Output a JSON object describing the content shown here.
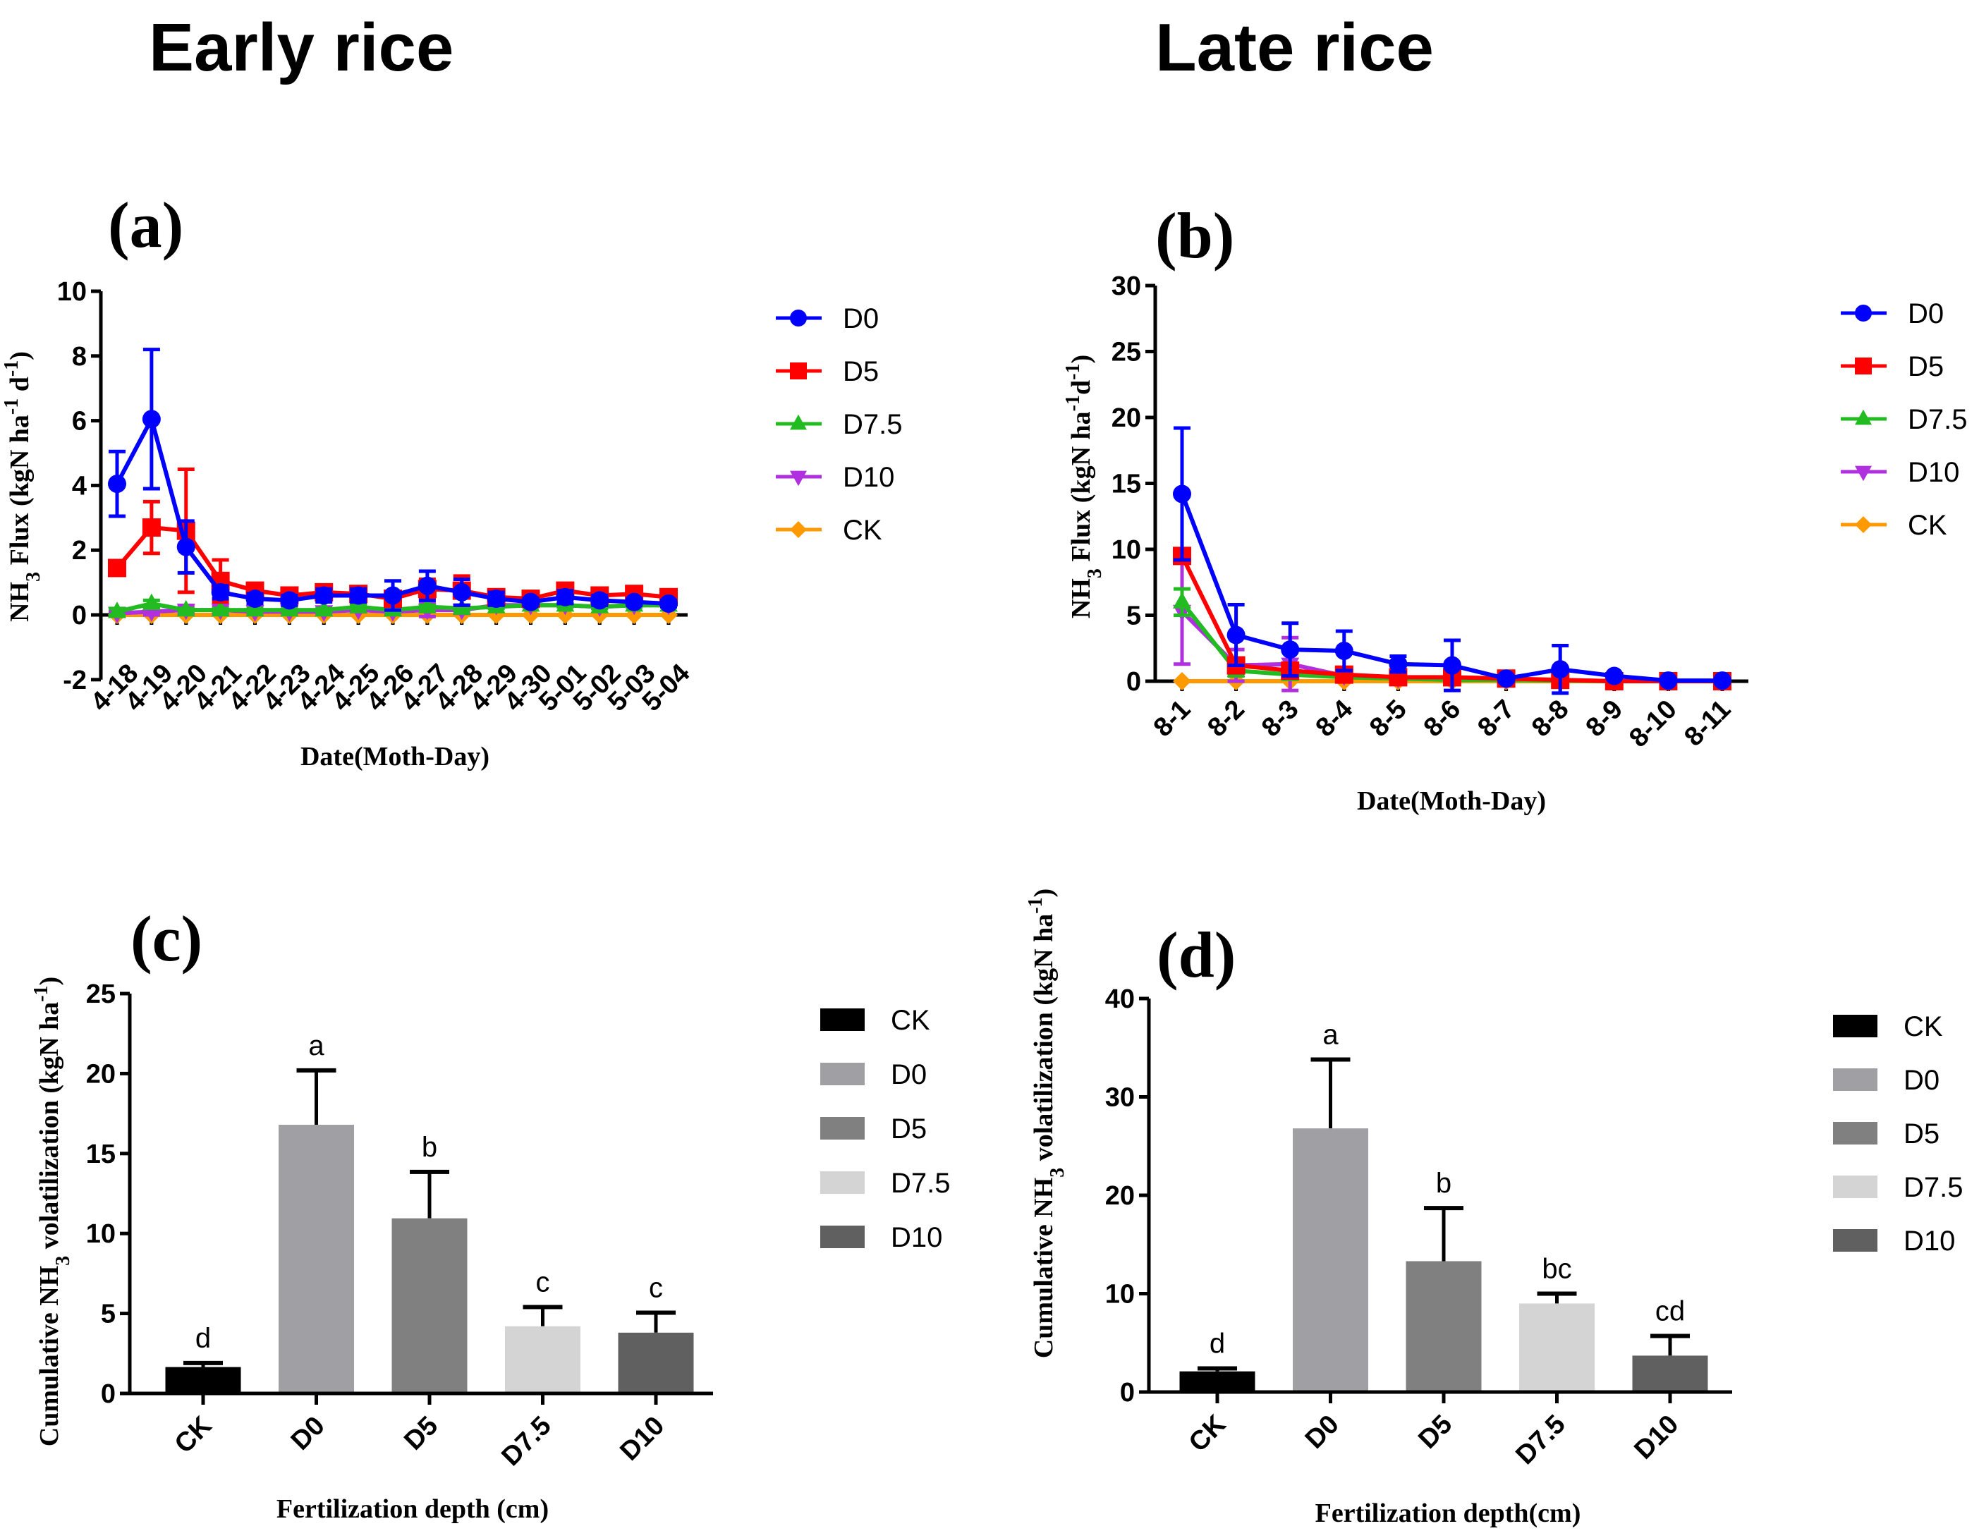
{
  "titles": {
    "early": "Early rice",
    "late": "Late rice"
  },
  "chart_data": [
    {
      "panel": "(a)",
      "type": "line",
      "ylabel_parts": [
        {
          "t": "NH"
        },
        {
          "t": "3",
          "s": "sub"
        },
        {
          "t": " Flux (kgN ha"
        },
        {
          "t": "-1",
          "s": "sup"
        },
        {
          "t": " d"
        },
        {
          "t": "-1",
          "s": "sup"
        },
        {
          "t": ")"
        }
      ],
      "xlabel": "Date(Moth-Day)",
      "ylim": [
        -2,
        10
      ],
      "yticks": [
        "-2",
        "0",
        "2",
        "4",
        "6",
        "8",
        "10"
      ],
      "ytick_values": [
        -2,
        0,
        2,
        4,
        6,
        8,
        10
      ],
      "categories": [
        "4-18",
        "4-19",
        "4-20",
        "4-21",
        "4-22",
        "4-23",
        "4-24",
        "4-25",
        "4-26",
        "4-27",
        "4-28",
        "4-29",
        "4-30",
        "5-01",
        "5-02",
        "5-03",
        "5-04"
      ],
      "legend_position": "right",
      "series": [
        {
          "name": "CK",
          "color": "#ff9900",
          "marker": "diamond",
          "values": [
            0,
            0,
            0,
            0,
            0,
            0,
            0,
            0,
            0,
            0,
            0,
            0,
            0,
            0,
            0,
            0,
            0
          ],
          "errors": [
            0,
            0,
            0,
            0,
            0,
            0,
            0,
            0,
            0,
            0,
            0,
            0,
            0,
            0,
            0,
            0,
            0
          ]
        },
        {
          "name": "D10",
          "color": "#b030e0",
          "marker": "triangle-down",
          "values": [
            0.05,
            0.1,
            0.15,
            0.15,
            0.1,
            0.1,
            0.1,
            0.15,
            0.1,
            0.15,
            0.15,
            0.3,
            0.3,
            0.3,
            0.25,
            0.3,
            0.3
          ],
          "errors": [
            0.05,
            0.1,
            0.1,
            0.1,
            0.05,
            0.05,
            0.05,
            0.05,
            0.05,
            0.2,
            0.1,
            0.05,
            0.05,
            0.05,
            0.05,
            0.05,
            0.05
          ]
        },
        {
          "name": "D7.5",
          "color": "#22bb22",
          "marker": "triangle-up",
          "values": [
            0.1,
            0.35,
            0.15,
            0.15,
            0.15,
            0.15,
            0.15,
            0.25,
            0.15,
            0.25,
            0.2,
            0.25,
            0.3,
            0.3,
            0.25,
            0.3,
            0.3
          ],
          "errors": [
            0.1,
            0.1,
            0.05,
            0.05,
            0.05,
            0.05,
            0.05,
            0.05,
            0.05,
            0.05,
            0.05,
            0.05,
            0.05,
            0.05,
            0.05,
            0.05,
            0.05
          ]
        },
        {
          "name": "D5",
          "color": "#ff0000",
          "marker": "square",
          "values": [
            1.45,
            2.7,
            2.6,
            1.05,
            0.75,
            0.6,
            0.7,
            0.65,
            0.5,
            0.8,
            0.75,
            0.55,
            0.5,
            0.75,
            0.6,
            0.65,
            0.55
          ],
          "errors": [
            0.1,
            0.8,
            1.9,
            0.65,
            0.1,
            0.1,
            0.2,
            0.2,
            0.1,
            0.3,
            0.45,
            0.1,
            0.1,
            0.1,
            0.1,
            0.1,
            0.1
          ]
        },
        {
          "name": "D0",
          "color": "#0000ff",
          "marker": "circle",
          "values": [
            4.05,
            6.05,
            2.1,
            0.7,
            0.5,
            0.45,
            0.6,
            0.6,
            0.6,
            0.9,
            0.7,
            0.5,
            0.4,
            0.55,
            0.45,
            0.4,
            0.35
          ],
          "errors": [
            1.0,
            2.15,
            0.8,
            0.2,
            0.15,
            0.15,
            0.2,
            0.2,
            0.45,
            0.45,
            0.4,
            0.2,
            0.1,
            0.2,
            0.15,
            0.1,
            0.1
          ]
        }
      ],
      "legend_order": [
        "D0",
        "D5",
        "D7.5",
        "D10",
        "CK"
      ]
    },
    {
      "panel": "(b)",
      "type": "line",
      "ylabel_parts": [
        {
          "t": "NH"
        },
        {
          "t": "3",
          "s": "sub"
        },
        {
          "t": " Flux (kgN ha"
        },
        {
          "t": "-1",
          "s": "sup"
        },
        {
          "t": "d"
        },
        {
          "t": "-1",
          "s": "sup"
        },
        {
          "t": ")"
        }
      ],
      "xlabel": "Date(Moth-Day)",
      "ylim": [
        0,
        30
      ],
      "yticks": [
        "0",
        "5",
        "10",
        "15",
        "20",
        "25",
        "30"
      ],
      "ytick_values": [
        0,
        5,
        10,
        15,
        20,
        25,
        30
      ],
      "categories": [
        "8-1",
        "8-2",
        "8-3",
        "8-4",
        "8-5",
        "8-6",
        "8-7",
        "8-8",
        "8-9",
        "8-10",
        "8-11"
      ],
      "legend_position": "right",
      "series": [
        {
          "name": "CK",
          "color": "#ff9900",
          "marker": "diamond",
          "values": [
            0,
            0,
            0,
            0,
            0,
            0,
            0,
            0,
            0,
            0,
            0
          ],
          "errors": [
            0,
            0,
            0,
            0,
            0,
            0,
            0,
            0,
            0,
            0,
            0
          ]
        },
        {
          "name": "D10",
          "color": "#b030e0",
          "marker": "triangle-down",
          "values": [
            5.3,
            1.2,
            1.3,
            0.4,
            0.2,
            0.2,
            0.1,
            0.1,
            0,
            0,
            0
          ],
          "errors": [
            4.0,
            1.2,
            2.0,
            0.2,
            0.1,
            0.1,
            0.1,
            0.1,
            0,
            0,
            0
          ]
        },
        {
          "name": "D7.5",
          "color": "#22bb22",
          "marker": "triangle-up",
          "values": [
            6.0,
            0.8,
            0.5,
            0.3,
            0.2,
            0.1,
            0.1,
            0.05,
            0,
            0,
            0
          ],
          "errors": [
            1.0,
            0.4,
            0.2,
            0.1,
            0.1,
            0.1,
            0.1,
            0.05,
            0,
            0,
            0
          ]
        },
        {
          "name": "D5",
          "color": "#ff0000",
          "marker": "square",
          "values": [
            9.5,
            1.2,
            0.8,
            0.5,
            0.3,
            0.3,
            0.2,
            0.1,
            0,
            0,
            0
          ],
          "errors": [
            0.5,
            0.4,
            0.3,
            0.2,
            0.1,
            0.1,
            0.1,
            0.1,
            0,
            0,
            0
          ]
        },
        {
          "name": "D0",
          "color": "#0000ff",
          "marker": "circle",
          "values": [
            14.2,
            3.5,
            2.4,
            2.3,
            1.3,
            1.2,
            0.2,
            0.9,
            0.4,
            0.05,
            0.05
          ],
          "errors": [
            5.0,
            2.3,
            2.0,
            1.5,
            0.6,
            1.9,
            0.2,
            1.8,
            0.1,
            0.1,
            0.1
          ]
        }
      ],
      "legend_order": [
        "D0",
        "D5",
        "D7.5",
        "D10",
        "CK"
      ]
    },
    {
      "panel": "(c)",
      "type": "bar",
      "ylabel_parts": [
        {
          "t": "Cumulative NH"
        },
        {
          "t": "3",
          "s": "sub"
        },
        {
          "t": " volatilization (kgN ha"
        },
        {
          "t": "-1",
          "s": "sup"
        },
        {
          "t": ")"
        }
      ],
      "xlabel": "Fertilization depth (cm)",
      "ylim": [
        0,
        25
      ],
      "yticks": [
        "0",
        "5",
        "10",
        "15",
        "20",
        "25"
      ],
      "ytick_values": [
        0,
        5,
        10,
        15,
        20,
        25
      ],
      "categories": [
        "CK",
        "D0",
        "D5",
        "D7.5",
        "D10"
      ],
      "values": [
        1.65,
        16.8,
        10.95,
        4.2,
        3.8
      ],
      "errors": [
        0.25,
        3.4,
        2.9,
        1.2,
        1.25
      ],
      "letters": [
        "d",
        "a",
        "b",
        "c",
        "c"
      ],
      "colors": [
        "#000000",
        "#a0a0a4",
        "#808080",
        "#d4d4d4",
        "#606060"
      ],
      "legend_position": "right"
    },
    {
      "panel": "(d)",
      "type": "bar",
      "ylabel_parts": [
        {
          "t": "Cumulative NH"
        },
        {
          "t": "3",
          "s": "sub"
        },
        {
          "t": " volatilization (kgN ha"
        },
        {
          "t": "-1",
          "s": "sup"
        },
        {
          "t": ")"
        }
      ],
      "xlabel": "Fertilization depth(cm)",
      "ylim": [
        0,
        40
      ],
      "yticks": [
        "0",
        "10",
        "20",
        "30",
        "40"
      ],
      "ytick_values": [
        0,
        10,
        20,
        30,
        40
      ],
      "categories": [
        "CK",
        "D0",
        "D5",
        "D7.5",
        "D10"
      ],
      "values": [
        2.1,
        26.8,
        13.3,
        9.0,
        3.7
      ],
      "errors": [
        0.3,
        7.0,
        5.4,
        1.0,
        2.0
      ],
      "letters": [
        "d",
        "a",
        "b",
        "bc",
        "cd"
      ],
      "colors": [
        "#000000",
        "#a0a0a4",
        "#808080",
        "#d4d4d4",
        "#606060"
      ],
      "legend_position": "right"
    }
  ]
}
